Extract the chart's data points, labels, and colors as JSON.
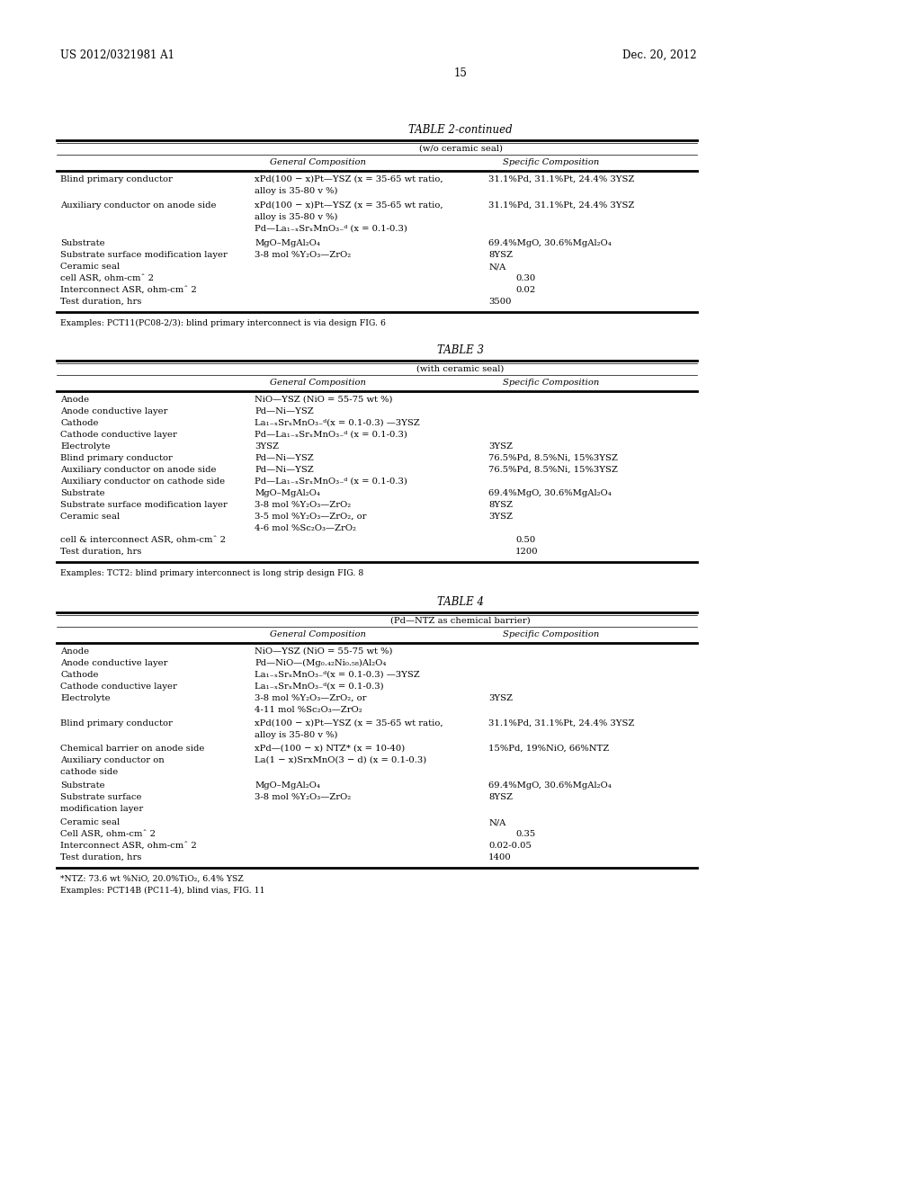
{
  "page_header_left": "US 2012/0321981 A1",
  "page_header_right": "Dec. 20, 2012",
  "page_number": "15",
  "background_color": "#ffffff",
  "table2_title": "TABLE 2-continued",
  "table2_subtitle": "(w/o ceramic seal)",
  "table2_col1": "General Composition",
  "table2_col2": "Specific Composition",
  "table2_rows": [
    [
      "Blind primary conductor",
      "xPd(100 − x)Pt—YSZ (x = 35-65 wt ratio,",
      "31.1%Pd, 31.1%Pt, 24.4% 3YSZ",
      "alloy is 35-80 v %)",
      "",
      2
    ],
    [
      "Auxiliary conductor on anode side",
      "xPd(100 − x)Pt—YSZ (x = 35-65 wt ratio,",
      "31.1%Pd, 31.1%Pt, 24.4% 3YSZ",
      "alloy is 35-80 v %)",
      "",
      3
    ],
    [
      "Substrate",
      "MgO–MgAl₂O₄",
      "69.4%MgO, 30.6%MgAl₂O₄",
      "",
      "",
      1
    ],
    [
      "Substrate surface modification layer",
      "3-8 mol %Y₂O₃—ZrO₂",
      "8YSZ",
      "",
      "",
      1
    ],
    [
      "Ceramic seal",
      "",
      "N/A",
      "",
      "",
      1
    ],
    [
      "cell ASR, ohm-cmˆ 2",
      "",
      "0.30",
      "",
      "",
      1
    ],
    [
      "Interconnect ASR, ohm-cmˆ 2",
      "",
      "0.02",
      "",
      "",
      1
    ],
    [
      "Test duration, hrs",
      "",
      "3500",
      "",
      "",
      1
    ]
  ],
  "table2_aux_line3": "Pd—La₁₋ₓSrₓMnO₃₋ᵈ (x = 0.1-0.3)",
  "table2_footnote": "Examples: PCT11(PC08-2/3): blind primary interconnect is via design FIG. 6",
  "table3_title": "TABLE 3",
  "table3_subtitle": "(with ceramic seal)",
  "table3_col1": "General Composition",
  "table3_col2": "Specific Composition",
  "table3_rows": [
    [
      "Anode",
      "NiO—YSZ (NiO = 55-75 wt %)",
      "",
      1
    ],
    [
      "Anode conductive layer",
      "Pd—Ni—YSZ",
      "",
      1
    ],
    [
      "Cathode",
      "La₁₋ₓSrₓMnO₃₋ᵈ(x = 0.1-0.3) —3YSZ",
      "",
      1
    ],
    [
      "Cathode conductive layer",
      "Pd—La₁₋ₓSrₓMnO₃₋ᵈ (x = 0.1-0.3)",
      "",
      1
    ],
    [
      "Electrolyte",
      "3YSZ",
      "3YSZ",
      1
    ],
    [
      "Blind primary conductor",
      "Pd—Ni—YSZ",
      "76.5%Pd, 8.5%Ni, 15%3YSZ",
      1
    ],
    [
      "Auxiliary conductor on anode side",
      "Pd—Ni—YSZ",
      "76.5%Pd, 8.5%Ni, 15%3YSZ",
      1
    ],
    [
      "Auxiliary conductor on cathode side",
      "Pd—La₁₋ₓSrₓMnO₃₋ᵈ (x = 0.1-0.3)",
      "",
      1
    ],
    [
      "Substrate",
      "MgO–MgAl₂O₄",
      "69.4%MgO, 30.6%MgAl₂O₄",
      1
    ],
    [
      "Substrate surface modification layer",
      "3-8 mol %Y₂O₃—ZrO₂",
      "8YSZ",
      1
    ],
    [
      "Ceramic seal",
      "3-5 mol %Y₂O₃—ZrO₂, or",
      "3YSZ",
      2
    ],
    [
      "cell & interconnect ASR, ohm-cmˆ 2",
      "",
      "0.50",
      1
    ],
    [
      "Test duration, hrs",
      "",
      "1200",
      1
    ]
  ],
  "table3_ceramic_line2": "4-6 mol %Sc₂O₃—ZrO₂",
  "table3_footnote": "Examples: TCT2: blind primary interconnect is long strip design FIG. 8",
  "table4_title": "TABLE 4",
  "table4_subtitle": "(Pd—NTZ as chemical barrier)",
  "table4_col1": "General Composition",
  "table4_col2": "Specific Composition",
  "table4_rows": [
    [
      "Anode",
      "NiO—YSZ (NiO = 55-75 wt %)",
      "",
      1
    ],
    [
      "Anode conductive layer",
      "Pd—NiO—(Mg₀.₄₂Ni₀.₅₈)Al₂O₄",
      "",
      1
    ],
    [
      "Cathode",
      "La₁₋ₓSrₓMnO₃₋ᵈ(x = 0.1-0.3) —3YSZ",
      "",
      1
    ],
    [
      "Cathode conductive layer",
      "La₁₋ₓSrₓMnO₃₋ᵈ(x = 0.1-0.3)",
      "",
      1
    ],
    [
      "Electrolyte",
      "3-8 mol %Y₂O₃—ZrO₂, or",
      "3YSZ",
      2
    ],
    [
      "Blind primary conductor",
      "xPd(100 − x)Pt—YSZ (x = 35-65 wt ratio,",
      "31.1%Pd, 31.1%Pt, 24.4% 3YSZ",
      2
    ],
    [
      "Chemical barrier on anode side",
      "xPd—(100 − x) NTZ* (x = 10-40)",
      "15%Pd, 19%NiO, 66%NTZ",
      1
    ],
    [
      "Auxiliary conductor on",
      "La(1 − x)SrxMnO(3 − d) (x = 0.1-0.3)",
      "",
      2
    ],
    [
      "Substrate",
      "MgO–MgAl₂O₄",
      "69.4%MgO, 30.6%MgAl₂O₄",
      1
    ],
    [
      "Substrate surface",
      "3-8 mol %Y₂O₃—ZrO₂",
      "8YSZ",
      2
    ],
    [
      "Ceramic seal",
      "N/A",
      "N/A",
      1
    ],
    [
      "Cell ASR, ohm-cmˆ 2",
      "",
      "0.35",
      1
    ],
    [
      "Interconnect ASR, ohm-cmˆ 2",
      "",
      "0.02-0.05",
      1
    ],
    [
      "Test duration, hrs",
      "",
      "1400",
      1
    ]
  ],
  "table4_elec_line2": "4-11 mol %Sc₂O₃—ZrO₂",
  "table4_blind_line2": "alloy is 35-80 v %)",
  "table4_aux_label2": "cathode side",
  "table4_sub_label2": "modification layer",
  "table4_footnote1": "*NTZ: 73.6 wt %NiO, 20.0%TiO₂, 6.4% YSZ",
  "table4_footnote2": "Examples: PCT14B (PC11-4), blind vias, FIG. 11"
}
